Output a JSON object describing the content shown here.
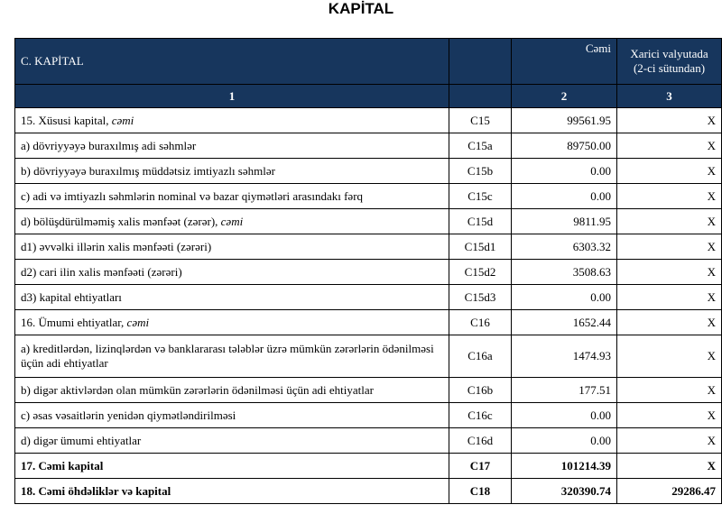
{
  "title": "KAPİTAL",
  "header": {
    "section": "C. KAPİTAL",
    "total": "Cəmi",
    "foreign": "Xarici valyutada (2-ci sütundan)",
    "numbers": [
      "1",
      "2",
      "3"
    ]
  },
  "table": {
    "rows": [
      {
        "label": "15. Xüsusi kapital,",
        "italic": "cəmi",
        "code": "C15",
        "total": "99561.95",
        "foreign": "X"
      },
      {
        "label": "a) dövriyyəyə buraxılmış adi səhmlər",
        "code": "C15a",
        "total": "89750.00",
        "foreign": "X"
      },
      {
        "label": "b) dövriyyəyə buraxılmış müddətsiz imtiyazlı səhmlər",
        "code": "C15b",
        "total": "0.00",
        "foreign": "X"
      },
      {
        "label": "c) adi və imtiyazlı səhmlərin nominal və bazar qiymətləri arasındakı fərq",
        "code": "C15c",
        "total": "0.00",
        "foreign": "X"
      },
      {
        "label": "d) bölüşdürülməmiş xalis mənfəət (zərər),",
        "italic": "cəmi",
        "code": "C15d",
        "total": "9811.95",
        "foreign": "X"
      },
      {
        "label": "d1) əvvəlki illərin xalis mənfəəti (zərəri)",
        "code": "C15d1",
        "total": "6303.32",
        "foreign": "X"
      },
      {
        "label": "d2) cari ilin xalis mənfəəti (zərəri)",
        "code": "C15d2",
        "total": "3508.63",
        "foreign": "X"
      },
      {
        "label": "d3) kapital ehtiyatları",
        "code": "C15d3",
        "total": "0.00",
        "foreign": "X"
      },
      {
        "label": "16. Ümumi ehtiyatlar,",
        "italic": "cəmi",
        "code": "C16",
        "total": "1652.44",
        "foreign": "X"
      },
      {
        "label": "a) kreditlərdən, lizinqlərdən və banklararası  tələblər üzrə mümkün zərərlərin ödənilməsi üçün adi ehtiyatlar",
        "code": "C16a",
        "total": "1474.93",
        "foreign": "X",
        "tall": true
      },
      {
        "label": "b) digər aktivlərdən olan mümkün zərərlərin ödənilməsi üçün adi ehtiyatlar",
        "code": "C16b",
        "total": "177.51",
        "foreign": "X"
      },
      {
        "label": "c) əsas vəsaitlərin yenidən qiymətləndirilməsi",
        "code": "C16c",
        "total": "0.00",
        "foreign": "X"
      },
      {
        "label": "d) digər ümumi ehtiyatlar",
        "code": "C16d",
        "total": "0.00",
        "foreign": "X"
      },
      {
        "label": "17. Cəmi kapital",
        "code": "C17",
        "total": "101214.39",
        "foreign": "X",
        "bold": true
      },
      {
        "label": "18. Cəmi öhdəliklər və kapital",
        "code": "C18",
        "total": "320390.74",
        "foreign": "29286.47",
        "bold": true
      }
    ]
  }
}
